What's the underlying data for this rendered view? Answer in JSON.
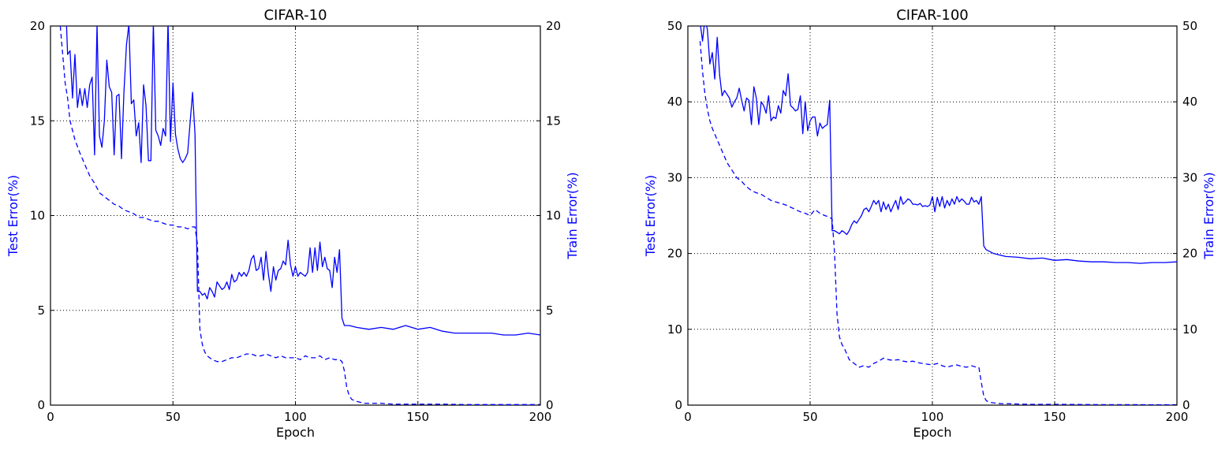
{
  "chart_data": [
    {
      "type": "line",
      "title": "CIFAR-10",
      "xlabel": "Epoch",
      "ylabel": "Test Error(%)",
      "ylabel_right": "Train Error(%)",
      "xlim": [
        0,
        200
      ],
      "ylim": [
        0,
        20
      ],
      "ylim_right": [
        0,
        20
      ],
      "xticks": [
        "0",
        "50",
        "100",
        "150",
        "200"
      ],
      "yticks": [
        "0",
        "5",
        "10",
        "15",
        "20"
      ],
      "yticks_right": [
        "0",
        "5",
        "10",
        "15",
        "20"
      ],
      "grid": true,
      "color": "#0000ff",
      "label_color": "#0000ff",
      "series": [
        {
          "style": "solid",
          "axis": "left",
          "x": [
            5,
            6,
            7,
            8,
            9,
            10,
            11,
            12,
            13,
            14,
            15,
            16,
            17,
            18,
            19,
            20,
            21,
            22,
            23,
            24,
            25,
            26,
            27,
            28,
            29,
            30,
            31,
            32,
            33,
            34,
            35,
            36,
            37,
            38,
            39,
            40,
            41,
            42,
            43,
            44,
            45,
            46,
            47,
            48,
            49,
            50,
            51,
            52,
            53,
            54,
            55,
            56,
            57,
            58,
            59,
            60,
            61,
            62,
            63,
            64,
            65,
            66,
            67,
            68,
            69,
            70,
            71,
            72,
            73,
            74,
            75,
            76,
            77,
            78,
            79,
            80,
            81,
            82,
            83,
            84,
            85,
            86,
            87,
            88,
            89,
            90,
            91,
            92,
            93,
            94,
            95,
            96,
            97,
            98,
            99,
            100,
            101,
            102,
            103,
            104,
            105,
            106,
            107,
            108,
            109,
            110,
            111,
            112,
            113,
            114,
            115,
            116,
            117,
            118,
            119,
            120,
            121,
            122,
            125,
            130,
            135,
            140,
            145,
            150,
            155,
            160,
            165,
            170,
            175,
            180,
            185,
            190,
            195,
            200
          ],
          "y": [
            21,
            22,
            18.5,
            18.7,
            16.2,
            18.5,
            15.7,
            16.7,
            15.8,
            16.7,
            15.7,
            16.9,
            17.3,
            13.2,
            20.1,
            14.2,
            13.6,
            15.0,
            18.2,
            16.8,
            16.5,
            13.2,
            16.3,
            16.4,
            13.0,
            16.5,
            19.0,
            20.1,
            15.9,
            16.1,
            14.2,
            14.9,
            12.8,
            16.9,
            15.8,
            12.9,
            12.9,
            20.2,
            14.5,
            14.2,
            13.7,
            14.6,
            14.2,
            20.3,
            13.9,
            17.0,
            14.3,
            13.5,
            13.0,
            12.8,
            13.0,
            13.3,
            14.9,
            16.5,
            14.3,
            6.0,
            6.0,
            5.8,
            5.9,
            5.6,
            6.2,
            6.0,
            5.7,
            6.5,
            6.3,
            6.1,
            6.2,
            6.5,
            6.1,
            6.9,
            6.5,
            6.6,
            7.0,
            6.8,
            7.0,
            6.8,
            7.1,
            7.7,
            7.9,
            7.1,
            7.2,
            7.8,
            6.6,
            8.1,
            6.9,
            6.0,
            7.3,
            6.6,
            7.1,
            7.2,
            7.6,
            7.4,
            8.7,
            7.4,
            6.8,
            7.3,
            6.8,
            7.0,
            6.9,
            6.8,
            7.0,
            8.3,
            7.0,
            8.3,
            7.1,
            8.6,
            7.3,
            7.8,
            7.2,
            7.1,
            6.2,
            7.8,
            7.0,
            8.2,
            4.6,
            4.2,
            4.2,
            4.2,
            4.1,
            4.0,
            4.1,
            4.0,
            4.2,
            4.0,
            4.1,
            3.9,
            3.8,
            3.8,
            3.8,
            3.8,
            3.7,
            3.7,
            3.8,
            3.7
          ]
        },
        {
          "style": "dashed",
          "axis": "right",
          "x": [
            4,
            5,
            6,
            7,
            8,
            10,
            12,
            14,
            16,
            18,
            20,
            22,
            24,
            26,
            28,
            30,
            32,
            34,
            36,
            38,
            40,
            42,
            44,
            46,
            48,
            50,
            52,
            54,
            56,
            58,
            59,
            60,
            61,
            62,
            63,
            64,
            66,
            68,
            70,
            72,
            74,
            76,
            78,
            80,
            82,
            84,
            86,
            88,
            90,
            92,
            94,
            96,
            98,
            100,
            102,
            104,
            106,
            108,
            110,
            112,
            114,
            116,
            118,
            119,
            120,
            121,
            122,
            123,
            125,
            128,
            130,
            135,
            140,
            145,
            150,
            160,
            170,
            180,
            190,
            200
          ],
          "y": [
            20,
            18.5,
            17.0,
            16.2,
            15.0,
            14.0,
            13.3,
            12.7,
            12.1,
            11.7,
            11.2,
            11.0,
            10.8,
            10.6,
            10.5,
            10.3,
            10.2,
            10.1,
            9.9,
            9.9,
            9.8,
            9.7,
            9.7,
            9.6,
            9.5,
            9.5,
            9.4,
            9.4,
            9.3,
            9.4,
            9.4,
            8.5,
            4.0,
            3.2,
            2.8,
            2.6,
            2.4,
            2.3,
            2.3,
            2.4,
            2.5,
            2.5,
            2.6,
            2.7,
            2.7,
            2.6,
            2.6,
            2.7,
            2.6,
            2.5,
            2.6,
            2.5,
            2.5,
            2.5,
            2.4,
            2.6,
            2.5,
            2.5,
            2.6,
            2.4,
            2.5,
            2.4,
            2.4,
            2.3,
            1.8,
            0.9,
            0.5,
            0.3,
            0.2,
            0.1,
            0.1,
            0.1,
            0.05,
            0.05,
            0.05,
            0.05,
            0.03,
            0.03,
            0.03,
            0.03
          ]
        }
      ]
    },
    {
      "type": "line",
      "title": "CIFAR-100",
      "xlabel": "Epoch",
      "ylabel": "Test Error(%)",
      "ylabel_right": "Train Error(%)",
      "xlim": [
        0,
        200
      ],
      "ylim": [
        0,
        50
      ],
      "ylim_right": [
        0,
        50
      ],
      "xticks": [
        "0",
        "50",
        "100",
        "150",
        "200"
      ],
      "yticks": [
        "0",
        "10",
        "20",
        "30",
        "40",
        "50"
      ],
      "yticks_right": [
        "0",
        "10",
        "20",
        "30",
        "40",
        "50"
      ],
      "grid": true,
      "color": "#0000ff",
      "label_color": "#0000ff",
      "series": [
        {
          "style": "solid",
          "axis": "left",
          "x": [
            5,
            6,
            7,
            8,
            9,
            10,
            11,
            12,
            13,
            14,
            15,
            16,
            17,
            18,
            19,
            20,
            21,
            22,
            23,
            24,
            25,
            26,
            27,
            28,
            29,
            30,
            31,
            32,
            33,
            34,
            35,
            36,
            37,
            38,
            39,
            40,
            41,
            42,
            43,
            44,
            45,
            46,
            47,
            48,
            49,
            50,
            51,
            52,
            53,
            54,
            55,
            56,
            57,
            58,
            59,
            60,
            61,
            62,
            63,
            64,
            65,
            66,
            67,
            68,
            69,
            70,
            71,
            72,
            73,
            74,
            75,
            76,
            77,
            78,
            79,
            80,
            81,
            82,
            83,
            84,
            85,
            86,
            87,
            88,
            89,
            90,
            91,
            92,
            93,
            94,
            95,
            96,
            97,
            98,
            99,
            100,
            101,
            102,
            103,
            104,
            105,
            106,
            107,
            108,
            109,
            110,
            111,
            112,
            113,
            114,
            115,
            116,
            117,
            118,
            119,
            120,
            121,
            122,
            125,
            130,
            135,
            140,
            145,
            150,
            155,
            160,
            165,
            170,
            175,
            180,
            185,
            190,
            195,
            200
          ],
          "y": [
            50.5,
            48.0,
            51.0,
            49.5,
            45.0,
            46.5,
            43.0,
            48.5,
            43.5,
            40.8,
            41.5,
            41.0,
            40.5,
            39.3,
            40.0,
            40.5,
            41.8,
            40.2,
            38.8,
            40.5,
            40.2,
            37.0,
            42.0,
            40.5,
            37.0,
            40.0,
            39.5,
            38.5,
            40.8,
            37.5,
            38.0,
            37.8,
            39.5,
            38.5,
            41.5,
            40.8,
            43.7,
            39.5,
            39.2,
            38.8,
            39.0,
            40.8,
            35.8,
            40.0,
            36.2,
            37.5,
            38.0,
            38.0,
            35.5,
            37.2,
            36.5,
            36.8,
            37.0,
            40.2,
            23.0,
            23.0,
            22.8,
            22.6,
            23.0,
            22.8,
            22.5,
            23.0,
            23.8,
            24.3,
            24.0,
            24.5,
            25.0,
            25.8,
            26.0,
            25.5,
            26.2,
            27.0,
            26.5,
            27.0,
            25.5,
            26.8,
            25.8,
            26.5,
            25.5,
            26.3,
            27.0,
            25.8,
            27.5,
            26.5,
            26.8,
            27.2,
            27.0,
            26.5,
            26.5,
            26.4,
            26.6,
            26.2,
            26.3,
            26.2,
            26.4,
            27.5,
            25.5,
            27.4,
            26.2,
            27.5,
            26.0,
            27.0,
            26.3,
            27.2,
            26.5,
            27.5,
            26.8,
            27.2,
            26.9,
            26.5,
            26.5,
            27.4,
            26.8,
            27.0,
            26.5,
            27.5,
            21.0,
            20.5,
            20.0,
            19.6,
            19.5,
            19.3,
            19.4,
            19.1,
            19.2,
            19.0,
            18.9,
            18.9,
            18.8,
            18.8,
            18.7,
            18.8,
            18.8,
            18.9
          ]
        },
        {
          "style": "dashed",
          "axis": "right",
          "x": [
            5,
            6,
            7,
            8,
            9,
            10,
            12,
            14,
            16,
            18,
            20,
            22,
            24,
            26,
            28,
            30,
            32,
            34,
            36,
            38,
            40,
            42,
            44,
            46,
            48,
            50,
            52,
            54,
            56,
            58,
            59,
            60,
            61,
            62,
            63,
            64,
            66,
            68,
            70,
            72,
            74,
            76,
            78,
            80,
            82,
            84,
            86,
            88,
            90,
            92,
            94,
            96,
            98,
            100,
            102,
            104,
            106,
            108,
            110,
            112,
            114,
            116,
            118,
            119,
            120,
            121,
            122,
            123,
            125,
            128,
            130,
            135,
            140,
            145,
            150,
            160,
            170,
            180,
            190,
            200
          ],
          "y": [
            48.0,
            44.0,
            41.0,
            39.0,
            37.5,
            36.5,
            35.0,
            33.5,
            32.0,
            31.0,
            30.0,
            29.5,
            28.8,
            28.3,
            28.0,
            27.8,
            27.4,
            27.0,
            26.8,
            26.6,
            26.4,
            26.1,
            25.8,
            25.5,
            25.3,
            25.0,
            25.8,
            25.3,
            25.0,
            24.8,
            24.5,
            20.0,
            12.0,
            9.0,
            8.0,
            7.5,
            6.0,
            5.5,
            5.0,
            5.2,
            5.0,
            5.5,
            5.8,
            6.2,
            6.0,
            5.9,
            6.0,
            5.8,
            5.7,
            5.8,
            5.6,
            5.5,
            5.4,
            5.3,
            5.5,
            5.2,
            5.0,
            5.2,
            5.3,
            5.1,
            5.0,
            5.2,
            5.0,
            5.0,
            3.0,
            1.2,
            0.6,
            0.4,
            0.3,
            0.2,
            0.2,
            0.15,
            0.1,
            0.1,
            0.1,
            0.08,
            0.06,
            0.06,
            0.05,
            0.05
          ]
        }
      ]
    }
  ]
}
